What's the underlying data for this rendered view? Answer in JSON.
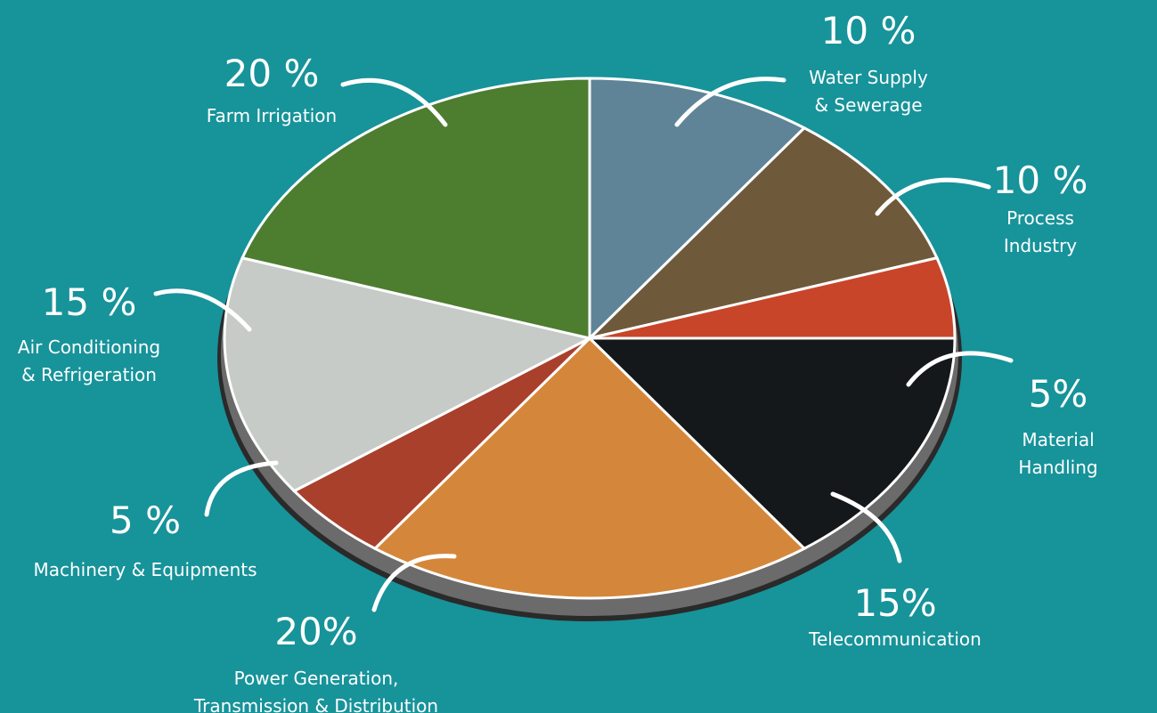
{
  "chart_data": {
    "type": "pie",
    "categories": [
      "Water Supply\n& Sewerage",
      "Process Industry",
      "Material Handling",
      "Telecommunication",
      "Power Generation,\nTransmission & Distribution",
      "Machinery & Equipments",
      "Air Conditioning\n& Refrigeration",
      "Farm Irrigation"
    ],
    "values": [
      10,
      10,
      5,
      15,
      20,
      5,
      15,
      20
    ],
    "value_labels": [
      "10 %",
      "10 %",
      "5%",
      "15%",
      "20%",
      "5 %",
      "15 %",
      "20 %"
    ],
    "colors": [
      "#5f8498",
      "#6e5a3a",
      "#c8452a",
      "#15181a",
      "#d4873a",
      "#a9402c",
      "#c6cbc7",
      "#4d7d2f"
    ]
  }
}
